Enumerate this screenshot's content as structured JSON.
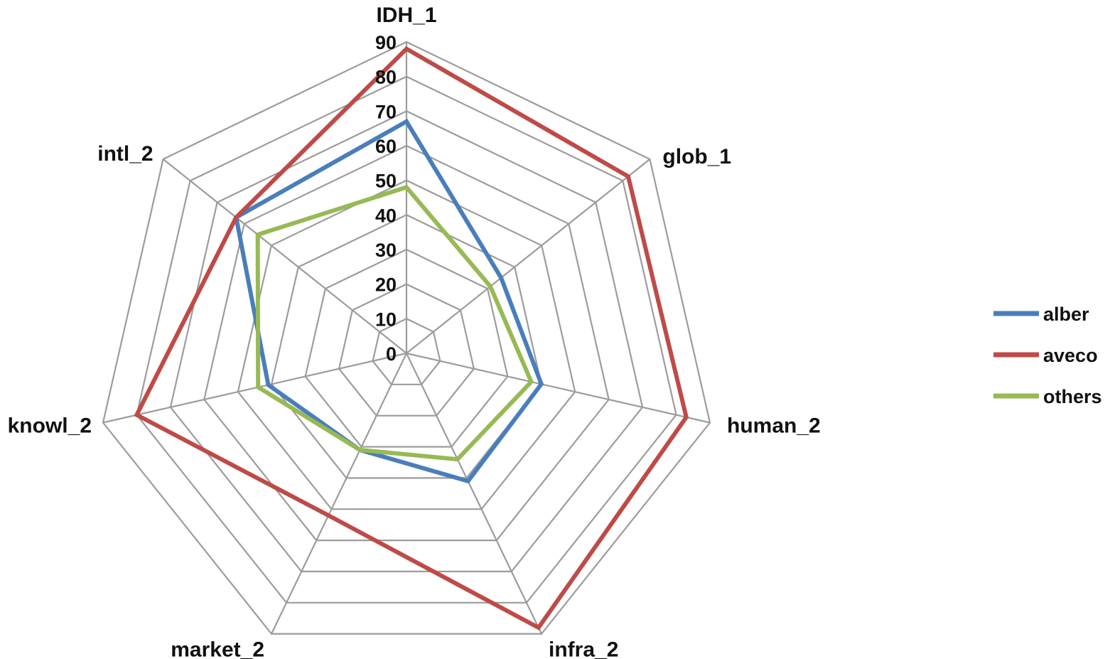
{
  "chart_data": {
    "type": "radar",
    "categories": [
      "IDH_1",
      "glob_1",
      "human_2",
      "infra_2",
      "market_2",
      "knowl_2",
      "intl_2"
    ],
    "r_ticks": [
      0,
      10,
      20,
      30,
      40,
      50,
      60,
      70,
      80,
      90
    ],
    "rlim": [
      0,
      90
    ],
    "grid": true,
    "legend_position": "right",
    "series": [
      {
        "name": "alber",
        "color": "#4a7ebb",
        "values": [
          67,
          35,
          40,
          41,
          31,
          41,
          63
        ]
      },
      {
        "name": "aveco",
        "color": "#be4b48",
        "values": [
          88,
          82,
          83,
          88,
          52,
          80,
          63
        ]
      },
      {
        "name": "others",
        "color": "#98b954",
        "values": [
          48,
          31,
          37,
          34,
          31,
          44,
          55
        ]
      }
    ]
  }
}
